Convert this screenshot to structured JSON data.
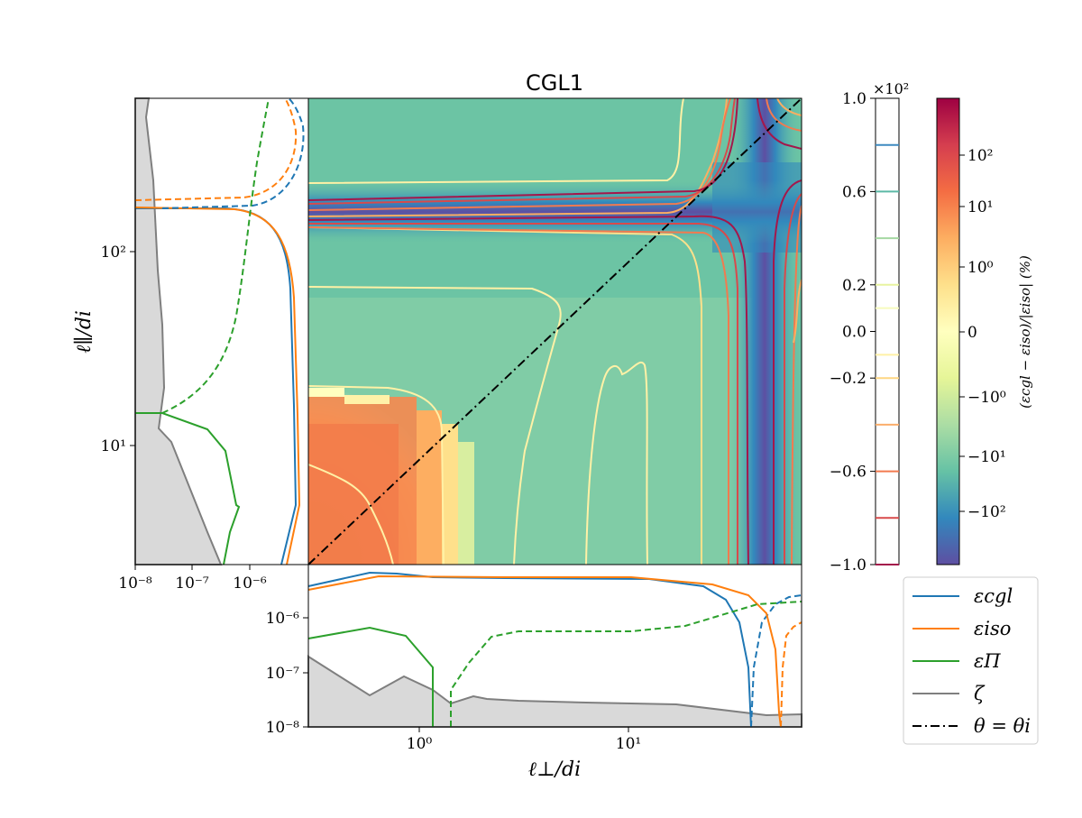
{
  "chart_data": {
    "type": "heatmap",
    "title": "CGL1",
    "xlabel": "ℓ⊥/di",
    "ylabel": "ℓ∥/di",
    "main_panel": {
      "x_log_range": [
        0.27,
        70
      ],
      "y_log_range": [
        2.6,
        900
      ],
      "diagonal_line": {
        "label": "θ = θi",
        "style": "dash-dot",
        "color": "#000000"
      }
    },
    "left_panel": {
      "x_scale": "log",
      "x_ticks": [
        "10⁻⁸",
        "10⁻⁷",
        "10⁻⁶"
      ],
      "y_ticks": [
        "10¹",
        "10²"
      ]
    },
    "bottom_panel": {
      "y_scale": "log",
      "y_ticks": [
        "10⁻⁸",
        "10⁻⁷",
        "10⁻⁶"
      ],
      "x_ticks": [
        "10⁰",
        "10¹"
      ]
    },
    "contour_colorbar": {
      "multiplier": "×10²",
      "ticks": [
        "1.0",
        "0.6",
        "0.2",
        "0.0",
        "−0.2",
        "−0.6",
        "−1.0"
      ],
      "levels": [
        {
          "value": 0.8,
          "color": "#3e8ac0"
        },
        {
          "value": 0.6,
          "color": "#5cb9a6"
        },
        {
          "value": 0.4,
          "color": "#a5d8a2"
        },
        {
          "value": 0.2,
          "color": "#e8f3a0"
        },
        {
          "value": 0.1,
          "color": "#f7fbbe"
        },
        {
          "value": -0.1,
          "color": "#fff1a6"
        },
        {
          "value": -0.2,
          "color": "#fed682"
        },
        {
          "value": -0.4,
          "color": "#fbae6b"
        },
        {
          "value": -0.6,
          "color": "#f27a4f"
        },
        {
          "value": -0.8,
          "color": "#d84a4b"
        },
        {
          "value": -1.0,
          "color": "#a4174b"
        }
      ]
    },
    "main_colorbar": {
      "label": "(εcgl − εiso)/|εiso| (%)",
      "ticks": [
        "10²",
        "10¹",
        "10⁰",
        "0",
        "−10⁰",
        "−10¹",
        "−10²"
      ],
      "colormap": [
        "#9e0142",
        "#d53e4f",
        "#f46d43",
        "#fdae61",
        "#fee08b",
        "#ffffbf",
        "#e6f598",
        "#abdda4",
        "#66c2a5",
        "#3288bd",
        "#5e4fa2"
      ]
    },
    "series": [
      {
        "name": "εcgl",
        "color": "#1f77b4",
        "style": "solid"
      },
      {
        "name": "εiso",
        "color": "#ff7f0e",
        "style": "solid"
      },
      {
        "name": "εΠ",
        "color": "#2ca02c",
        "style": "solid"
      },
      {
        "name": "ζ",
        "color": "#7f7f7f",
        "style": "solid"
      },
      {
        "name": "θ = θi",
        "color": "#000000",
        "style": "dashdot"
      }
    ]
  }
}
